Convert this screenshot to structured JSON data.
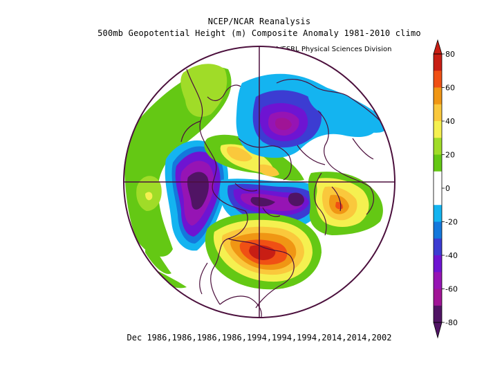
{
  "header": {
    "title": "NCEP/NCAR Reanalysis",
    "subtitle": "500mb Geopotential Height (m) Composite Anomaly 1981-2010 climo",
    "credit": "NOAA/ESRL Physical Sciences Division"
  },
  "caption": "Dec 1986,1986,1986,1986,1994,1994,1994,2014,2014,2002",
  "colorbar": {
    "labels": [
      "80",
      "60",
      "40",
      "20",
      "0",
      "-20",
      "-40",
      "-60",
      "-80"
    ],
    "colors": [
      "#c81e14",
      "#f05014",
      "#f09614",
      "#fac83c",
      "#f5f050",
      "#a0dc28",
      "#64c814",
      "#ffffff",
      "#ffffff",
      "#14b4f0",
      "#1478dc",
      "#3c3cd2",
      "#6e14d2",
      "#9614b4",
      "#a01496",
      "#501464"
    ]
  },
  "map": {
    "projection": "north-polar-stereographic",
    "fill_colors": {
      "green": "#64c814",
      "lightgreen": "#a0dc28",
      "yellow": "#f5f050",
      "gold": "#fac83c",
      "orange": "#f09614",
      "darkorange": "#f05014",
      "red": "#c81e14",
      "cyan": "#14b4f0",
      "blue": "#1478dc",
      "indigo": "#3c3cd2",
      "violet": "#6e14d2",
      "purple": "#9614b4",
      "magenta": "#a01496",
      "deep": "#501464",
      "coast": "#4b0f3c"
    }
  }
}
